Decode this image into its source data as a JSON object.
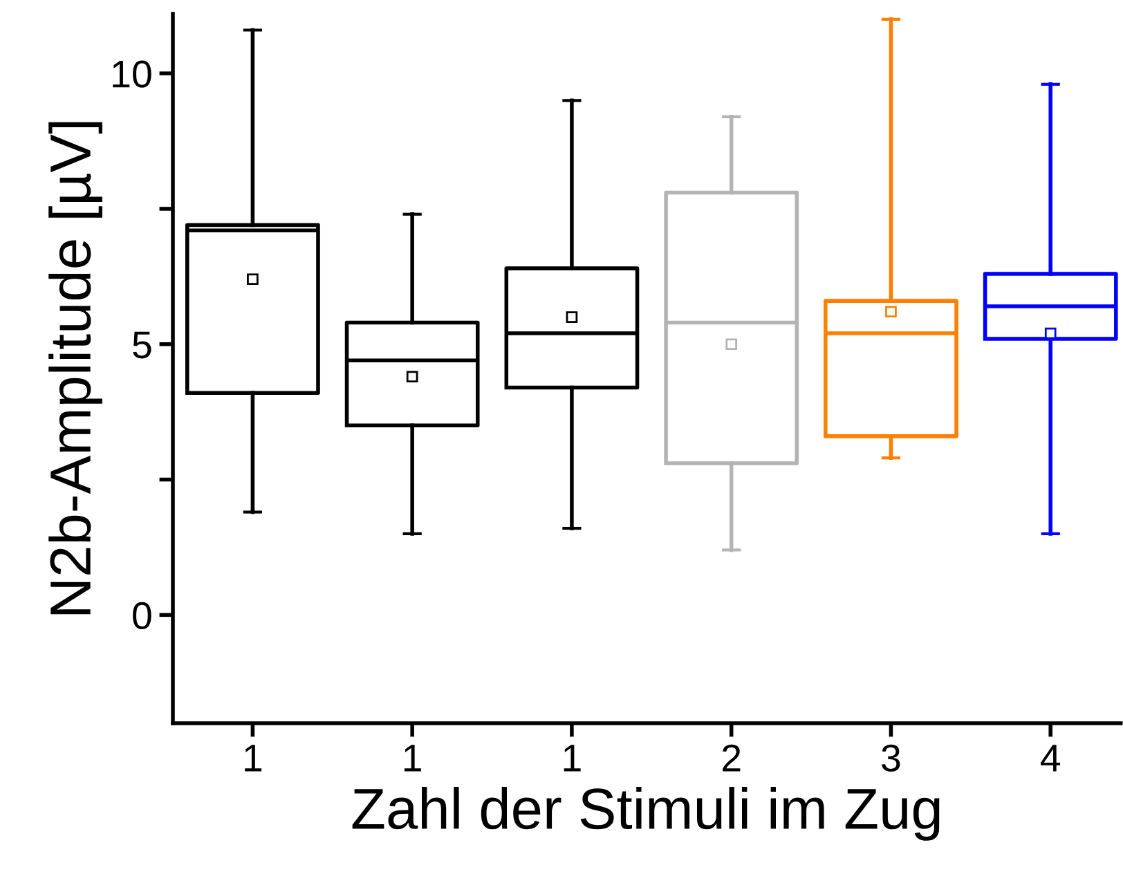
{
  "chart_data": {
    "type": "box",
    "xlabel": "Zahl der Stimuli im Zug",
    "ylabel": "N2b-Amplitude [µV]",
    "categories": [
      "1",
      "1",
      "1",
      "2",
      "3",
      "4"
    ],
    "colors": [
      "#000000",
      "#000000",
      "#000000",
      "#b4b4b4",
      "#ff8000",
      "#0000ff"
    ],
    "boxes": [
      {
        "low": 1.9,
        "q1": 4.1,
        "median": 7.1,
        "q3": 7.2,
        "high": 10.8,
        "mean": 6.2
      },
      {
        "low": 1.5,
        "q1": 3.5,
        "median": 4.7,
        "q3": 5.4,
        "high": 7.4,
        "mean": 4.4
      },
      {
        "low": 1.6,
        "q1": 4.2,
        "median": 5.2,
        "q3": 6.4,
        "high": 9.5,
        "mean": 5.5
      },
      {
        "low": 1.2,
        "q1": 2.8,
        "median": 5.4,
        "q3": 7.8,
        "high": 9.2,
        "mean": 5.0
      },
      {
        "low": 2.9,
        "q1": 3.3,
        "median": 5.2,
        "q3": 5.8,
        "high": 11.0,
        "mean": 5.6
      },
      {
        "low": 1.5,
        "q1": 5.1,
        "median": 5.7,
        "q3": 6.3,
        "high": 9.8,
        "mean": 5.2
      }
    ],
    "ylim": [
      -2,
      11.1
    ],
    "yticks": [
      0,
      {
        "value": 2.5,
        "label": null
      },
      5,
      {
        "value": 7.5,
        "label": null
      },
      10
    ],
    "grid": false
  }
}
